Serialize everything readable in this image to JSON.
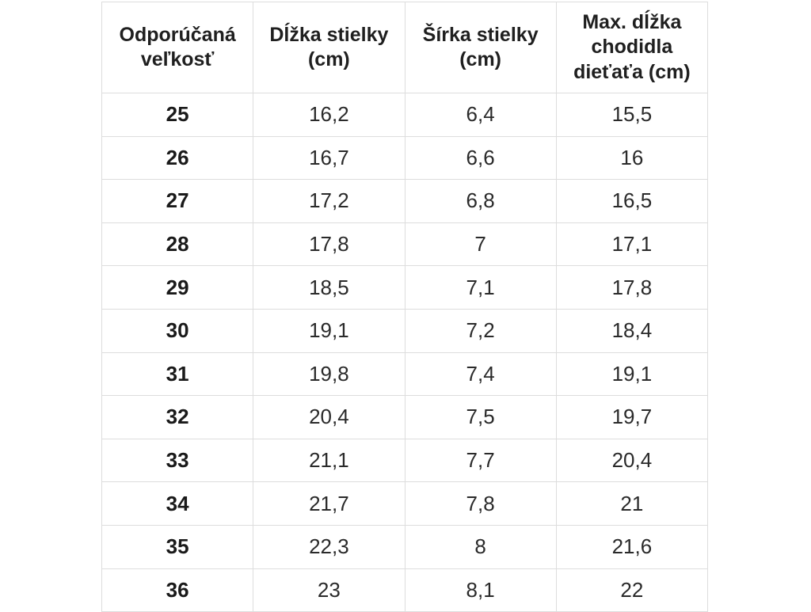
{
  "style": {
    "background": "#ffffff",
    "border_color": "#dddddd",
    "header_text_color": "#1f1f1f",
    "body_text_color": "#2a2a2a"
  },
  "chart_data": {
    "type": "table",
    "title": "",
    "columns": [
      "Odporúčaná veľkosť",
      "Dĺžka stielky (cm)",
      "Šírka stielky (cm)",
      "Max. dĺžka chodidla dieťaťa (cm)"
    ],
    "rows": [
      [
        "25",
        "16,2",
        "6,4",
        "15,5"
      ],
      [
        "26",
        "16,7",
        "6,6",
        "16"
      ],
      [
        "27",
        "17,2",
        "6,8",
        "16,5"
      ],
      [
        "28",
        "17,8",
        "7",
        "17,1"
      ],
      [
        "29",
        "18,5",
        "7,1",
        "17,8"
      ],
      [
        "30",
        "19,1",
        "7,2",
        "18,4"
      ],
      [
        "31",
        "19,8",
        "7,4",
        "19,1"
      ],
      [
        "32",
        "20,4",
        "7,5",
        "19,7"
      ],
      [
        "33",
        "21,1",
        "7,7",
        "20,4"
      ],
      [
        "34",
        "21,7",
        "7,8",
        "21"
      ],
      [
        "35",
        "22,3",
        "8",
        "21,6"
      ],
      [
        "36",
        "23",
        "8,1",
        "22"
      ]
    ]
  }
}
